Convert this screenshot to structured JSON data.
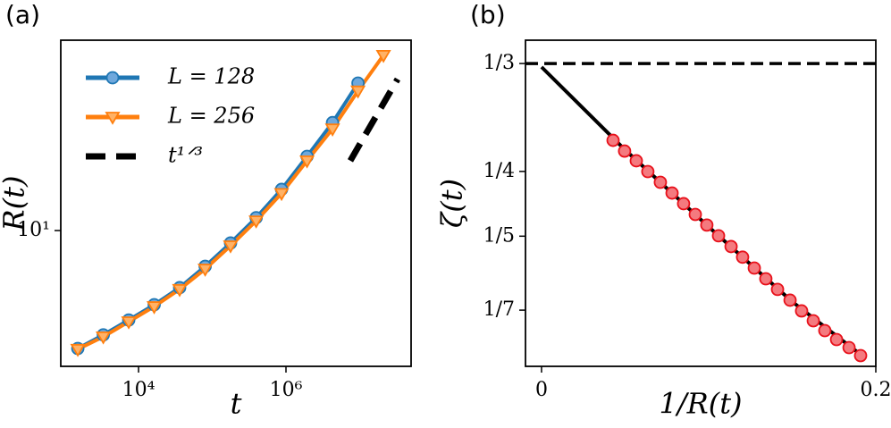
{
  "chart_data": [
    {
      "type": "line",
      "panel_label": "(a)",
      "xlabel": "t",
      "ylabel": "R(t)",
      "xscale": "log",
      "yscale": "log",
      "xlim": [
        881,
        49800000
      ],
      "ylim": [
        4.43,
        31.3
      ],
      "xticks": [
        {
          "value": 10000,
          "label": "10⁴"
        },
        {
          "value": 1000000,
          "label": "10⁶"
        }
      ],
      "yticks": [
        {
          "value": 10,
          "label": "10¹"
        }
      ],
      "legend": "upper left",
      "series": [
        {
          "name": "L = 128",
          "color": "#1f77b4",
          "marker_color": "#6fa8dc",
          "marker": "circle",
          "x": [
            1500,
            3325,
            7360,
            16300,
            36100,
            80100,
            177000,
            394000,
            871000,
            1930000,
            4280000,
            9480000
          ],
          "values": [
            4.93,
            5.35,
            5.85,
            6.41,
            7.1,
            8.07,
            9.28,
            10.8,
            12.8,
            15.6,
            19.1,
            24.2
          ]
        },
        {
          "name": "L = 256",
          "color": "#ff7f0e",
          "marker_color": "#ffb266",
          "marker": "triangle-down",
          "x": [
            1500,
            3325,
            7360,
            16300,
            36100,
            80100,
            177000,
            394000,
            871000,
            1930000,
            4280000,
            9480000,
            21000000
          ],
          "values": [
            4.91,
            5.29,
            5.79,
            6.34,
            7.03,
            7.94,
            9.13,
            10.6,
            12.5,
            15.2,
            18.4,
            23.1,
            28.6
          ]
        },
        {
          "name": "t¹ᐟ³",
          "color": "#000000",
          "style": "dashed",
          "x": [
            7460000,
            32700000
          ],
          "values": [
            15.2,
            24.8
          ]
        }
      ]
    },
    {
      "type": "line",
      "panel_label": "(b)",
      "xlabel": "1/R(t)",
      "ylabel": "ζ(t)",
      "xscale": "linear",
      "yscale": "linear",
      "xlim": [
        -0.0096,
        0.2
      ],
      "ylim": [
        0.0995,
        0.3513
      ],
      "xticks": [
        0,
        0.2
      ],
      "yticks": [
        {
          "value": 0.3333,
          "label": "1/3"
        },
        {
          "value": 0.25,
          "label": "1/4"
        },
        {
          "value": 0.2,
          "label": "1/5"
        },
        {
          "value": 0.1429,
          "label": "1/7"
        }
      ],
      "hlines": [
        {
          "y": 0.3333,
          "color": "#000000",
          "style": "dashed"
        }
      ],
      "series": [
        {
          "color": "#000000",
          "x": [
            0,
            0.05,
            0.1,
            0.15,
            0.19
          ],
          "values": [
            0.3306,
            0.2666,
            0.2072,
            0.1494,
            0.1095
          ]
        },
        {
          "color": "#e8101a",
          "marker_color": "#f47a7f",
          "marker": "circle",
          "line": false,
          "x": [
            0.0428,
            0.0497,
            0.0567,
            0.0636,
            0.0711,
            0.0781,
            0.085,
            0.092,
            0.0989,
            0.1059,
            0.1134,
            0.1203,
            0.1273,
            0.1342,
            0.1412,
            0.1487,
            0.1556,
            0.1626,
            0.1695,
            0.1765,
            0.184,
            0.1909
          ],
          "values": [
            0.274,
            0.2657,
            0.2582,
            0.2499,
            0.2416,
            0.2333,
            0.2251,
            0.2168,
            0.2086,
            0.2003,
            0.192,
            0.1838,
            0.1754,
            0.1671,
            0.1589,
            0.1506,
            0.1423,
            0.1347,
            0.1271,
            0.1202,
            0.114,
            0.1078
          ]
        }
      ]
    }
  ]
}
